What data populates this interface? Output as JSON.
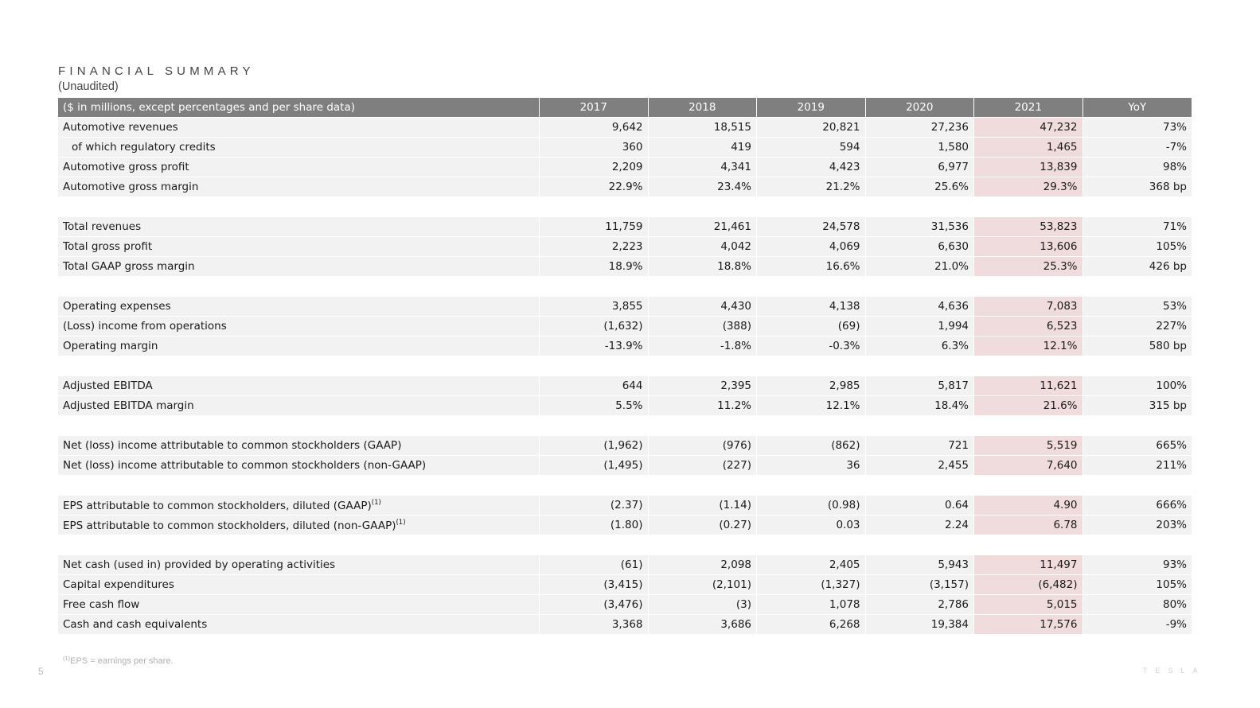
{
  "header": {
    "title": "FINANCIAL SUMMARY",
    "subtitle": "(Unaudited)"
  },
  "table": {
    "columns": [
      "($ in millions, except percentages and per share data)",
      "2017",
      "2018",
      "2019",
      "2020",
      "2021",
      "YoY"
    ],
    "highlight_color": "#f1dcdd",
    "header_color": "#7f7f7f",
    "groups": [
      [
        {
          "label": "Automotive revenues",
          "values": [
            "9,642",
            "18,515",
            "20,821",
            "27,236",
            "47,232",
            "73%"
          ]
        },
        {
          "label": "of which regulatory credits",
          "indent": true,
          "values": [
            "360",
            "419",
            "594",
            "1,580",
            "1,465",
            "-7%"
          ]
        },
        {
          "label": "Automotive gross profit",
          "values": [
            "2,209",
            "4,341",
            "4,423",
            "6,977",
            "13,839",
            "98%"
          ]
        },
        {
          "label": "Automotive gross margin",
          "values": [
            "22.9%",
            "23.4%",
            "21.2%",
            "25.6%",
            "29.3%",
            "368 bp"
          ]
        }
      ],
      [
        {
          "label": "Total revenues",
          "values": [
            "11,759",
            "21,461",
            "24,578",
            "31,536",
            "53,823",
            "71%"
          ]
        },
        {
          "label": "Total gross profit",
          "values": [
            "2,223",
            "4,042",
            "4,069",
            "6,630",
            "13,606",
            "105%"
          ]
        },
        {
          "label": "Total GAAP gross margin",
          "values": [
            "18.9%",
            "18.8%",
            "16.6%",
            "21.0%",
            "25.3%",
            "426 bp"
          ]
        }
      ],
      [
        {
          "label": "Operating expenses",
          "values": [
            "3,855",
            "4,430",
            "4,138",
            "4,636",
            "7,083",
            "53%"
          ]
        },
        {
          "label": "(Loss) income from operations",
          "values": [
            "(1,632)",
            "(388)",
            "(69)",
            "1,994",
            "6,523",
            "227%"
          ]
        },
        {
          "label": "Operating margin",
          "values": [
            "-13.9%",
            "-1.8%",
            "-0.3%",
            "6.3%",
            "12.1%",
            "580 bp"
          ]
        }
      ],
      [
        {
          "label": "Adjusted EBITDA",
          "values": [
            "644",
            "2,395",
            "2,985",
            "5,817",
            "11,621",
            "100%"
          ]
        },
        {
          "label": "Adjusted EBITDA margin",
          "values": [
            "5.5%",
            "11.2%",
            "12.1%",
            "18.4%",
            "21.6%",
            "315 bp"
          ]
        }
      ],
      [
        {
          "label": "Net (loss) income attributable to common stockholders (GAAP)",
          "values": [
            "(1,962)",
            "(976)",
            "(862)",
            "721",
            "5,519",
            "665%"
          ]
        },
        {
          "label": "Net (loss) income attributable to common stockholders (non-GAAP)",
          "values": [
            "(1,495)",
            "(227)",
            "36",
            "2,455",
            "7,640",
            "211%"
          ]
        }
      ],
      [
        {
          "label": "EPS attributable to common stockholders, diluted (GAAP)",
          "sup": "(1)",
          "values": [
            "(2.37)",
            "(1.14)",
            "(0.98)",
            "0.64",
            "4.90",
            "666%"
          ]
        },
        {
          "label": "EPS attributable to common stockholders, diluted (non-GAAP)",
          "sup": "(1)",
          "values": [
            "(1.80)",
            "(0.27)",
            "0.03",
            "2.24",
            "6.78",
            "203%"
          ]
        }
      ],
      [
        {
          "label": "Net cash (used in) provided by operating activities",
          "values": [
            "(61)",
            "2,098",
            "2,405",
            "5,943",
            "11,497",
            "93%"
          ]
        },
        {
          "label": "Capital expenditures",
          "values": [
            "(3,415)",
            "(2,101)",
            "(1,327)",
            "(3,157)",
            "(6,482)",
            "105%"
          ]
        },
        {
          "label": "Free cash flow",
          "values": [
            "(3,476)",
            "(3)",
            "1,078",
            "2,786",
            "5,015",
            "80%"
          ]
        },
        {
          "label": "Cash and cash equivalents",
          "values": [
            "3,368",
            "3,686",
            "6,268",
            "19,384",
            "17,576",
            "-9%"
          ]
        }
      ]
    ]
  },
  "footnote": {
    "sup": "(1)",
    "text": "EPS = earnings per share."
  },
  "page_number": "5",
  "logo_text": "TESLA"
}
